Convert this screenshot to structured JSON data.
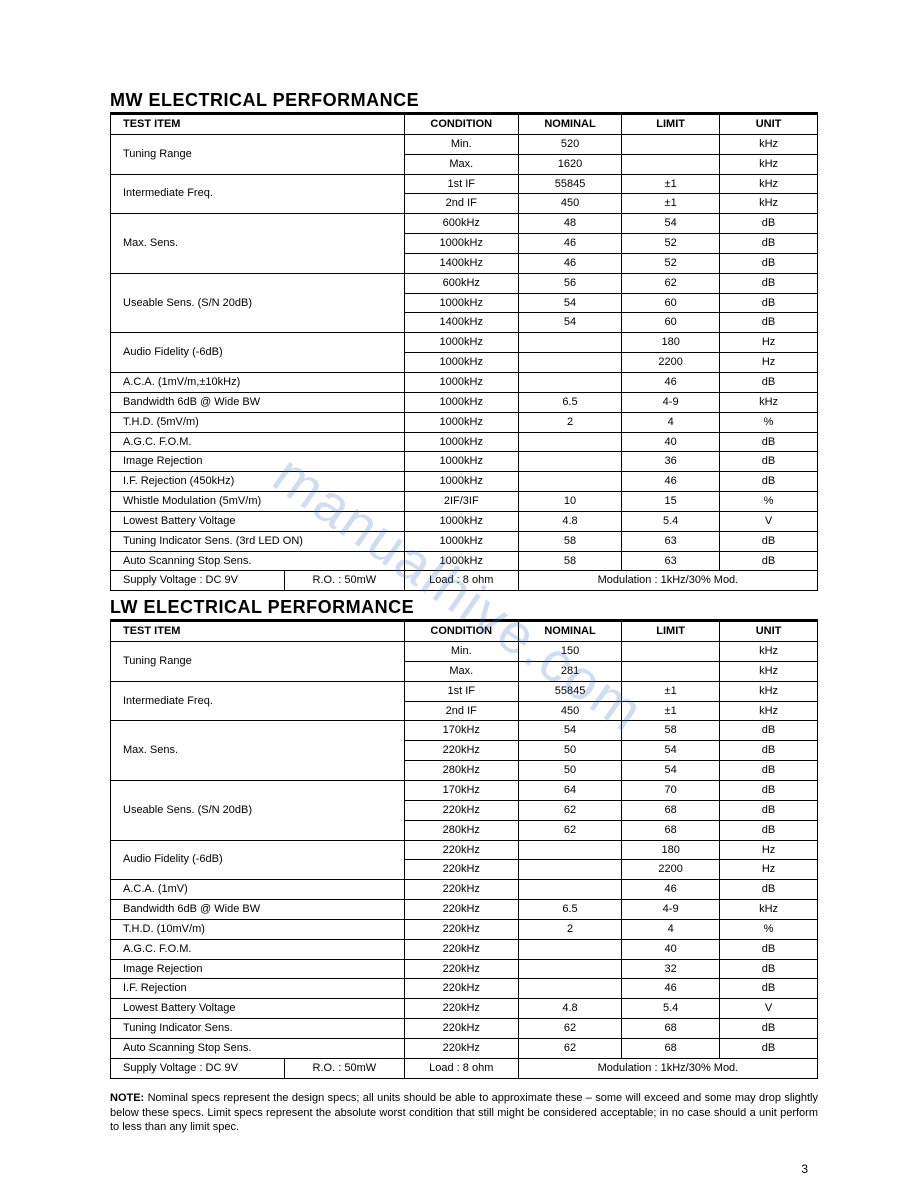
{
  "mw": {
    "title": "MW ELECTRICAL PERFORMANCE",
    "headers": {
      "item": "TEST ITEM",
      "cond": "CONDITION",
      "nom": "NOMINAL",
      "lim": "LIMIT",
      "unit": "UNIT"
    },
    "rows": [
      {
        "item": "Tuning Range",
        "span": 2,
        "sub": [
          {
            "cond": "Min.",
            "nom": "520",
            "lim": "",
            "unit": "kHz"
          },
          {
            "cond": "Max.",
            "nom": "1620",
            "lim": "",
            "unit": "kHz"
          }
        ]
      },
      {
        "item": "Intermediate Freq.",
        "span": 2,
        "sub": [
          {
            "cond": "1st IF",
            "nom": "55845",
            "lim": "±1",
            "unit": "kHz"
          },
          {
            "cond": "2nd IF",
            "nom": "450",
            "lim": "±1",
            "unit": "kHz"
          }
        ]
      },
      {
        "item": "Max. Sens.",
        "span": 3,
        "sub": [
          {
            "cond": "600kHz",
            "nom": "48",
            "lim": "54",
            "unit": "dB"
          },
          {
            "cond": "1000kHz",
            "nom": "46",
            "lim": "52",
            "unit": "dB"
          },
          {
            "cond": "1400kHz",
            "nom": "46",
            "lim": "52",
            "unit": "dB"
          }
        ]
      },
      {
        "item": "Useable Sens. (S/N 20dB)",
        "span": 3,
        "sub": [
          {
            "cond": "600kHz",
            "nom": "56",
            "lim": "62",
            "unit": "dB"
          },
          {
            "cond": "1000kHz",
            "nom": "54",
            "lim": "60",
            "unit": "dB"
          },
          {
            "cond": "1400kHz",
            "nom": "54",
            "lim": "60",
            "unit": "dB"
          }
        ]
      },
      {
        "item": "Audio Fidelity (-6dB)",
        "span": 2,
        "sub": [
          {
            "cond": "1000kHz",
            "nom": "",
            "lim": "180",
            "unit": "Hz"
          },
          {
            "cond": "1000kHz",
            "nom": "",
            "lim": "2200",
            "unit": "Hz"
          }
        ]
      },
      {
        "item": "A.C.A.   (1mV/m,±10kHz)",
        "span": 1,
        "sub": [
          {
            "cond": "1000kHz",
            "nom": "",
            "lim": "46",
            "unit": "dB"
          }
        ]
      },
      {
        "item": "Bandwidth  6dB          @ Wide BW",
        "span": 1,
        "sub": [
          {
            "cond": "1000kHz",
            "nom": "6.5",
            "lim": "4-9",
            "unit": "kHz"
          }
        ]
      },
      {
        "item": "T.H.D. (5mV/m)",
        "span": 1,
        "sub": [
          {
            "cond": "1000kHz",
            "nom": "2",
            "lim": "4",
            "unit": "%"
          }
        ]
      },
      {
        "item": "A.G.C.  F.O.M.",
        "span": 1,
        "sub": [
          {
            "cond": "1000kHz",
            "nom": "",
            "lim": "40",
            "unit": "dB"
          }
        ]
      },
      {
        "item": "Image Rejection",
        "span": 1,
        "sub": [
          {
            "cond": "1000kHz",
            "nom": "",
            "lim": "36",
            "unit": "dB"
          }
        ]
      },
      {
        "item": "I.F.   Rejection (450kHz)",
        "span": 1,
        "sub": [
          {
            "cond": "1000kHz",
            "nom": "",
            "lim": "46",
            "unit": "dB"
          }
        ]
      },
      {
        "item": "Whistle Modulation (5mV/m)",
        "span": 1,
        "sub": [
          {
            "cond": "2IF/3IF",
            "nom": "10",
            "lim": "15",
            "unit": "%"
          }
        ]
      },
      {
        "item": "Lowest Battery Voltage",
        "span": 1,
        "sub": [
          {
            "cond": "1000kHz",
            "nom": "4.8",
            "lim": "5.4",
            "unit": "V"
          }
        ]
      },
      {
        "item": "Tuning Indicator Sens.   (3rd LED ON)",
        "span": 1,
        "sub": [
          {
            "cond": "1000kHz",
            "nom": "58",
            "lim": "63",
            "unit": "dB"
          }
        ]
      },
      {
        "item": "Auto Scanning Stop Sens.",
        "span": 1,
        "sub": [
          {
            "cond": "1000kHz",
            "nom": "58",
            "lim": "63",
            "unit": "dB"
          }
        ]
      }
    ],
    "footer": {
      "supply": "Supply Voltage : DC 9V",
      "ro": "R.O. : 50mW",
      "load": "Load : 8 ohm",
      "mod": "Modulation : 1kHz/30% Mod."
    }
  },
  "lw": {
    "title": "LW ELECTRICAL PERFORMANCE",
    "headers": {
      "item": "TEST ITEM",
      "cond": "CONDITION",
      "nom": "NOMINAL",
      "lim": "LIMIT",
      "unit": "UNIT"
    },
    "rows": [
      {
        "item": "Tuning Range",
        "span": 2,
        "sub": [
          {
            "cond": "Min.",
            "nom": "150",
            "lim": "",
            "unit": "kHz"
          },
          {
            "cond": "Max.",
            "nom": "281",
            "lim": "",
            "unit": "kHz"
          }
        ]
      },
      {
        "item": "Intermediate Freq.",
        "span": 2,
        "sub": [
          {
            "cond": "1st IF",
            "nom": "55845",
            "lim": "±1",
            "unit": "kHz"
          },
          {
            "cond": "2nd IF",
            "nom": "450",
            "lim": "±1",
            "unit": "kHz"
          }
        ]
      },
      {
        "item": "Max. Sens.",
        "span": 3,
        "sub": [
          {
            "cond": "170kHz",
            "nom": "54",
            "lim": "58",
            "unit": "dB"
          },
          {
            "cond": "220kHz",
            "nom": "50",
            "lim": "54",
            "unit": "dB"
          },
          {
            "cond": "280kHz",
            "nom": "50",
            "lim": "54",
            "unit": "dB"
          }
        ]
      },
      {
        "item": "Useable Sens. (S/N 20dB)",
        "span": 3,
        "sub": [
          {
            "cond": "170kHz",
            "nom": "64",
            "lim": "70",
            "unit": "dB"
          },
          {
            "cond": "220kHz",
            "nom": "62",
            "lim": "68",
            "unit": "dB"
          },
          {
            "cond": "280kHz",
            "nom": "62",
            "lim": "68",
            "unit": "dB"
          }
        ]
      },
      {
        "item": "Audio Fidelity (-6dB)",
        "span": 2,
        "sub": [
          {
            "cond": "220kHz",
            "nom": "",
            "lim": "180",
            "unit": "Hz"
          },
          {
            "cond": "220kHz",
            "nom": "",
            "lim": "2200",
            "unit": "Hz"
          }
        ]
      },
      {
        "item": "A.C.A. (1mV)",
        "span": 1,
        "sub": [
          {
            "cond": "220kHz",
            "nom": "",
            "lim": "46",
            "unit": "dB"
          }
        ]
      },
      {
        "item": "Bandwidth 6dB              @  Wide BW",
        "span": 1,
        "sub": [
          {
            "cond": "220kHz",
            "nom": "6.5",
            "lim": "4-9",
            "unit": "kHz"
          }
        ]
      },
      {
        "item": "T.H.D. (10mV/m)",
        "span": 1,
        "sub": [
          {
            "cond": "220kHz",
            "nom": "2",
            "lim": "4",
            "unit": "%"
          }
        ]
      },
      {
        "item": "A.G.C. F.O.M.",
        "span": 1,
        "sub": [
          {
            "cond": "220kHz",
            "nom": "",
            "lim": "40",
            "unit": "dB"
          }
        ]
      },
      {
        "item": "Image Rejection",
        "span": 1,
        "sub": [
          {
            "cond": "220kHz",
            "nom": "",
            "lim": "32",
            "unit": "dB"
          }
        ]
      },
      {
        "item": "I.F. Rejection",
        "span": 1,
        "sub": [
          {
            "cond": "220kHz",
            "nom": "",
            "lim": "46",
            "unit": "dB"
          }
        ]
      },
      {
        "item": "Lowest Battery Voltage",
        "span": 1,
        "sub": [
          {
            "cond": "220kHz",
            "nom": "4.8",
            "lim": "5.4",
            "unit": "V"
          }
        ]
      },
      {
        "item": "Tuning Indicator Sens.",
        "span": 1,
        "sub": [
          {
            "cond": "220kHz",
            "nom": "62",
            "lim": "68",
            "unit": "dB"
          }
        ]
      },
      {
        "item": "Auto Scanning Stop Sens.",
        "span": 1,
        "sub": [
          {
            "cond": "220kHz",
            "nom": "62",
            "lim": "68",
            "unit": "dB"
          }
        ]
      }
    ],
    "footer": {
      "supply": "Supply Voltage : DC 9V",
      "ro": "R.O. : 50mW",
      "load": "Load : 8 ohm",
      "mod": "Modulation : 1kHz/30% Mod."
    }
  },
  "note": {
    "label": "NOTE:",
    "text": "Nominal specs represent the design specs; all units should be able to approximate these – some will exceed and some may drop slightly below these specs. Limit specs represent the absolute worst condition that still might be considered acceptable; in no case should a unit perform to less than any limit spec."
  },
  "page_number": "3",
  "watermark": "manualhive.com"
}
